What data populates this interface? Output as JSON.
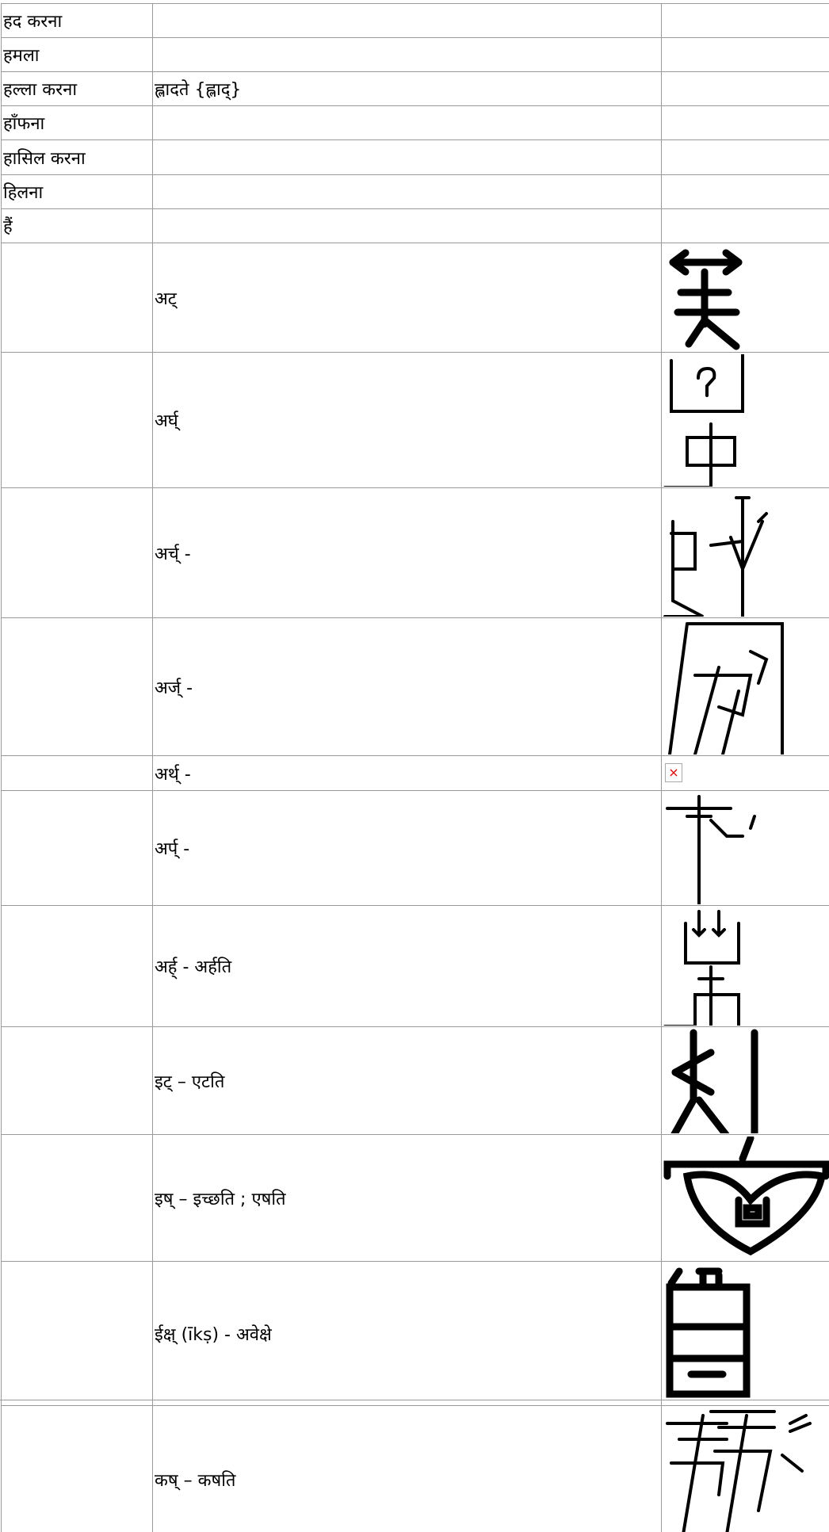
{
  "table": {
    "rows": [
      {
        "hindi": "हद करना"
      },
      {
        "hindi": "हमला"
      },
      {
        "hindi": "हल्ला करना",
        "sanskrit": "ह्लादते {ह्लाद्}"
      },
      {
        "hindi": "हाँफना"
      },
      {
        "hindi": "हासिल करना"
      },
      {
        "hindi": "हिलना"
      },
      {
        "hindi": "हैं"
      },
      {
        "sanskrit": "अट्"
      },
      {
        "sanskrit": "अर्घ्"
      },
      {
        "sanskrit": "अर्च् -"
      },
      {
        "sanskrit": "अर्ज् -"
      },
      {
        "sanskrit": "अर्थ् -"
      },
      {
        "sanskrit": "अर्प् -"
      },
      {
        "sanskrit": "अर्ह् - अर्हति"
      },
      {
        "sanskrit": "इट् – एटति"
      },
      {
        "sanskrit": "इष् – इच्छति ; एषति"
      },
      {
        "sanskrit": "ईक्ष् (īkṣ) - अवेक्षे"
      },
      {
        "sanskrit": "कष् – कषति"
      }
    ]
  }
}
